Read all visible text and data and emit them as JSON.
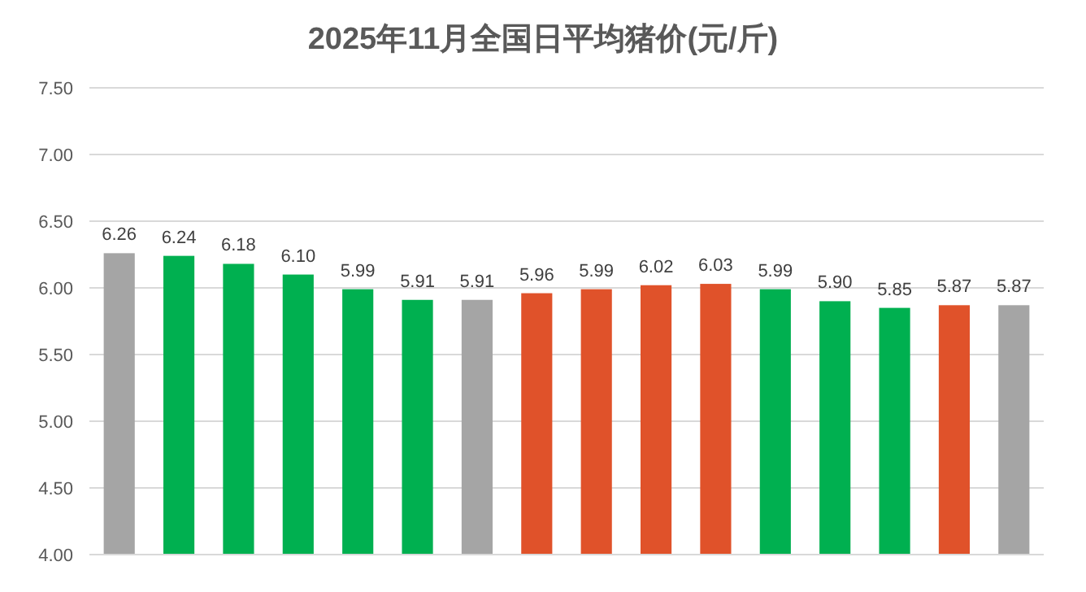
{
  "chart_data": {
    "type": "bar",
    "title": "2025年11月全国日平均猪价(元/斤)",
    "categories": [
      null,
      null,
      null,
      null,
      null,
      null,
      null,
      null,
      null,
      null,
      null,
      null,
      null,
      null,
      null,
      null
    ],
    "values": [
      6.26,
      6.24,
      6.18,
      6.1,
      5.99,
      5.91,
      5.91,
      5.96,
      5.99,
      6.02,
      6.03,
      5.99,
      5.9,
      5.85,
      5.87,
      5.87
    ],
    "value_labels": [
      "6.26",
      "6.24",
      "6.18",
      "6.10",
      "5.99",
      "5.91",
      "5.91",
      "5.96",
      "5.99",
      "6.02",
      "6.03",
      "5.99",
      "5.90",
      "5.85",
      "5.87",
      "5.87"
    ],
    "colors": [
      "#a5a5a5",
      "#00b050",
      "#00b050",
      "#00b050",
      "#00b050",
      "#00b050",
      "#a5a5a5",
      "#e0522a",
      "#e0522a",
      "#e0522a",
      "#e0522a",
      "#00b050",
      "#00b050",
      "#00b050",
      "#e0522a",
      "#a5a5a5"
    ],
    "ylim": [
      4,
      7.5
    ],
    "yticks": [
      {
        "value": 4,
        "label": "4.00"
      },
      {
        "value": 4.5,
        "label": "4.50"
      },
      {
        "value": 5,
        "label": "5.00"
      },
      {
        "value": 5.5,
        "label": "5.50"
      },
      {
        "value": 6,
        "label": "6.00"
      },
      {
        "value": 6.5,
        "label": "6.50"
      },
      {
        "value": 7,
        "label": "7.00"
      },
      {
        "value": 7.5,
        "label": "7.50"
      }
    ],
    "grid": "y"
  }
}
